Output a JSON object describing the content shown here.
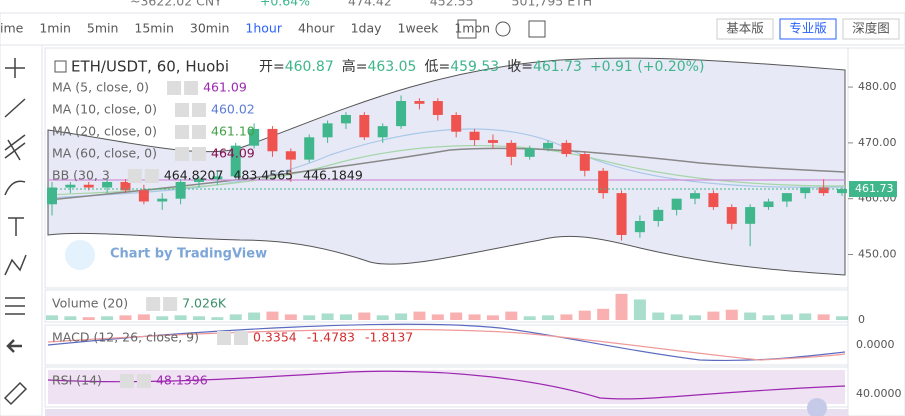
{
  "top_bar": [
    "~3622.02 CNY",
    "+0.64%",
    "474.42",
    "452.55",
    "501,795 ETH"
  ],
  "intervals": [
    "ime",
    "1min",
    "5min",
    "15min",
    "30min",
    "1hour",
    "4hour",
    "1day",
    "1week",
    "1mon"
  ],
  "active_interval": "1hour",
  "versions": [
    "基本版",
    "专业版",
    "深度图"
  ],
  "active_version": "专业版",
  "header": {
    "symbol": "ETH/USDT, 60, Huobi",
    "ohlc": [
      {
        "label": "开=",
        "value": "460.87"
      },
      {
        "label": "高=",
        "value": "463.05"
      },
      {
        "label": "低=",
        "value": "459.53"
      },
      {
        "label": "收=",
        "value": "461.73"
      }
    ],
    "change": "+0.91 (+0.20%)"
  },
  "indicators": [
    {
      "name": "MA (5, close, 0)",
      "value": "461.09",
      "color": "#9c27b0"
    },
    {
      "name": "MA (10, close, 0)",
      "value": "460.02",
      "color": "#5b7bd5"
    },
    {
      "name": "MA (20, close, 0)",
      "value": "461.10",
      "color": "#43a047"
    },
    {
      "name": "MA (60, close, 0)",
      "value": "464.09",
      "color": "#880e4f"
    }
  ],
  "bb": {
    "name": "BB (30, 3",
    "values": [
      "464.8207",
      "483.4565",
      "446.1849"
    ]
  },
  "watermark": "Chart by TradingView",
  "price_axis": {
    "ylim": [
      444,
      487
    ],
    "yticks": [
      {
        "value": 450,
        "label": "450.00"
      },
      {
        "value": 460,
        "label": "460.00"
      },
      {
        "value": 470,
        "label": "470.00"
      },
      {
        "value": 480,
        "label": "480.00"
      }
    ],
    "last": {
      "value": 461.73,
      "label": "461.73"
    }
  },
  "up_color": "#3fb68b",
  "down_color": "#ef5350",
  "candles": [
    [
      459,
      463,
      457,
      462
    ],
    [
      462,
      463,
      461,
      462.5
    ],
    [
      462.5,
      463,
      461.5,
      462
    ],
    [
      462,
      463.5,
      461,
      463
    ],
    [
      463,
      463.5,
      461,
      461.5
    ],
    [
      461.5,
      462.5,
      459,
      459.5
    ],
    [
      459.5,
      461,
      458,
      460
    ],
    [
      460,
      463.5,
      459,
      463
    ],
    [
      463,
      464,
      462,
      463.5
    ],
    [
      463.5,
      465,
      462.5,
      464
    ],
    [
      464,
      470,
      463.5,
      469.5
    ],
    [
      469.5,
      473.5,
      469,
      472.5
    ],
    [
      472.5,
      473,
      467.5,
      468.5
    ],
    [
      468.5,
      469,
      463,
      467
    ],
    [
      467,
      471.5,
      466.5,
      471
    ],
    [
      471,
      474,
      470,
      473.5
    ],
    [
      473.5,
      475.5,
      472.5,
      475
    ],
    [
      475,
      475.5,
      470.5,
      471
    ],
    [
      471,
      473.5,
      470,
      473
    ],
    [
      473,
      478.5,
      472.5,
      477.5
    ],
    [
      477.5,
      478,
      476,
      477
    ],
    [
      477.5,
      478,
      474,
      475
    ],
    [
      475,
      475.5,
      471,
      472
    ],
    [
      472,
      472.5,
      469.5,
      470.5
    ],
    [
      470.5,
      471.5,
      469,
      470
    ],
    [
      470,
      470.5,
      466,
      467.5
    ],
    [
      467.5,
      469.5,
      467,
      469
    ],
    [
      469,
      470.5,
      468.5,
      470
    ],
    [
      470,
      470.5,
      467.5,
      468
    ],
    [
      468,
      468.5,
      464,
      465
    ],
    [
      465,
      465.5,
      460,
      461
    ],
    [
      461,
      461.5,
      452.5,
      453.5
    ],
    [
      454,
      457,
      453,
      456
    ],
    [
      456,
      458.5,
      455,
      458
    ],
    [
      458,
      460,
      457,
      460
    ],
    [
      460,
      461.5,
      459,
      461
    ],
    [
      461,
      461.5,
      458,
      458.5
    ],
    [
      458.5,
      459,
      454.5,
      455.5
    ],
    [
      455.5,
      459,
      451.5,
      458.5
    ],
    [
      458.5,
      460,
      458,
      459.5
    ],
    [
      459.5,
      461,
      458.5,
      461
    ],
    [
      461,
      462,
      460,
      462
    ],
    [
      462,
      463.5,
      460.5,
      461
    ],
    [
      461,
      462,
      460.5,
      461.73
    ]
  ],
  "volume": {
    "label": "Volume (20)",
    "value": "7.026K",
    "ylim": [
      0,
      30
    ],
    "yticks": [
      0
    ],
    "values": [
      5,
      4,
      3,
      4,
      5,
      6,
      4,
      5,
      4,
      3,
      6,
      8,
      9,
      6,
      5,
      7,
      6,
      8,
      5,
      7,
      9,
      6,
      8,
      6,
      5,
      9,
      4,
      5,
      6,
      10,
      12,
      28,
      22,
      8,
      6,
      5,
      9,
      11,
      8,
      5,
      6,
      7,
      6,
      4
    ]
  },
  "macd": {
    "label": "MACD (12, 26, close, 9)",
    "values": [
      "0.3354",
      "-1.4783",
      "-1.8137"
    ],
    "axis_label": "0.0000"
  },
  "rsi": {
    "label": "RSI (14)",
    "value": "48.1396",
    "axis_label": "40.0000"
  }
}
